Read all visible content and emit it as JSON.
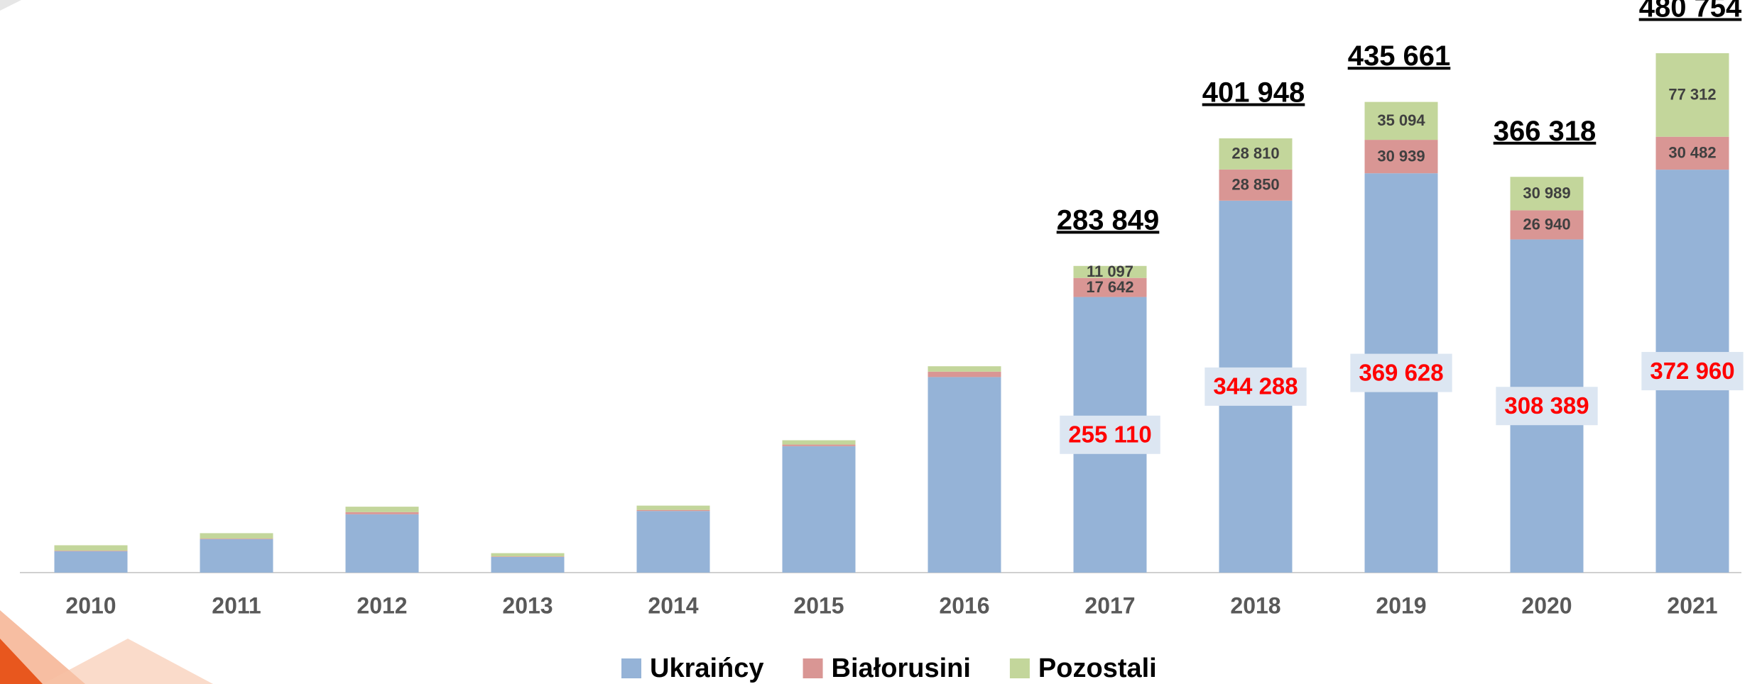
{
  "chart_data": {
    "type": "stacked_bar",
    "categories": [
      "2010",
      "2011",
      "2012",
      "2013",
      "2014",
      "2015",
      "2016",
      "2017",
      "2018",
      "2019",
      "2020",
      "2021"
    ],
    "series": [
      {
        "name": "Ukraińcy",
        "color": "#95b3d7",
        "values": [
          19800,
          31000,
          54000,
          14500,
          57000,
          117000,
          181000,
          255110,
          344288,
          369628,
          308389,
          372960
        ],
        "value_labels": [
          null,
          null,
          null,
          null,
          null,
          null,
          null,
          "255 110",
          "344 288",
          "369 628",
          "308 389",
          "372 960"
        ]
      },
      {
        "name": "Białorusini",
        "color": "#d99694",
        "values": [
          500,
          500,
          2000,
          500,
          1000,
          1500,
          5000,
          17642,
          28850,
          30939,
          26940,
          30482
        ],
        "value_labels": [
          null,
          null,
          null,
          null,
          null,
          null,
          null,
          "17 642",
          "28 850",
          "30 939",
          "26 940",
          "30 482"
        ]
      },
      {
        "name": "Pozostali",
        "color": "#c3d69b",
        "values": [
          5000,
          5000,
          5000,
          3000,
          4000,
          4000,
          5000,
          11097,
          28810,
          35094,
          30989,
          77312
        ],
        "value_labels": [
          null,
          null,
          null,
          null,
          null,
          null,
          null,
          "11 097",
          "28 810",
          "35 094",
          "30 989",
          "77 312"
        ]
      }
    ],
    "totals": [
      null,
      null,
      null,
      null,
      null,
      null,
      null,
      283849,
      401948,
      435661,
      366318,
      480754
    ],
    "total_labels": [
      null,
      null,
      null,
      null,
      null,
      null,
      null,
      "283 849",
      "401 948",
      "435 661",
      "366 318",
      "480 754"
    ],
    "ylim": [
      0,
      530000
    ],
    "legend": "bottom"
  }
}
